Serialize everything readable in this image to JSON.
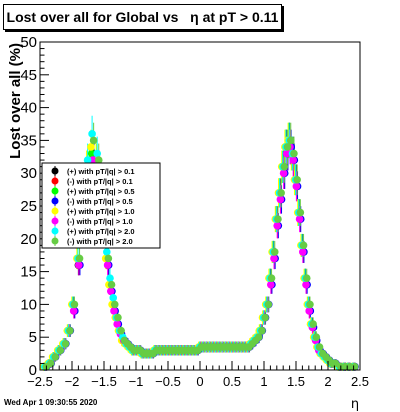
{
  "title": "Lost over all for Global vs   η at pT > 0.11",
  "timestamp": "Wed Apr  1 09:30:55 2020",
  "chart_data": {
    "type": "scatter",
    "xlabel": "η",
    "ylabel": "Lost over all (%)",
    "xlim": [
      -2.5,
      2.5
    ],
    "ylim": [
      0,
      50
    ],
    "x_ticks": [
      "−2.5",
      "−2",
      "−1.5",
      "−1",
      "−0.5",
      "0",
      "0.5",
      "1",
      "1.5",
      "2",
      "2.5"
    ],
    "y_ticks": [
      "0",
      "5",
      "10",
      "15",
      "20",
      "25",
      "30",
      "35",
      "40",
      "45",
      "50"
    ],
    "grid": false,
    "legend_position": "left-middle",
    "eta": [
      -2.42,
      -2.35,
      -2.28,
      -2.2,
      -2.12,
      -2.05,
      -1.98,
      -1.9,
      -1.82,
      -1.75,
      -1.68,
      -1.6,
      -1.55,
      -1.5,
      -1.45,
      -1.4,
      -1.35,
      -1.3,
      -1.25,
      -1.2,
      -1.15,
      -1.1,
      -1.05,
      -1.0,
      -0.95,
      -0.9,
      -0.85,
      -0.8,
      -0.75,
      -0.7,
      -0.65,
      -0.6,
      -0.55,
      -0.5,
      -0.45,
      -0.4,
      -0.35,
      -0.3,
      -0.25,
      -0.2,
      -0.15,
      -0.1,
      -0.05,
      0.0,
      0.05,
      0.1,
      0.15,
      0.2,
      0.25,
      0.3,
      0.35,
      0.4,
      0.45,
      0.5,
      0.55,
      0.6,
      0.65,
      0.7,
      0.75,
      0.8,
      0.85,
      0.9,
      0.95,
      1.0,
      1.05,
      1.1,
      1.15,
      1.2,
      1.25,
      1.3,
      1.35,
      1.4,
      1.45,
      1.5,
      1.55,
      1.6,
      1.65,
      1.7,
      1.75,
      1.8,
      1.85,
      1.9,
      1.95,
      2.0,
      2.05,
      2.1,
      2.18,
      2.25,
      2.32,
      2.4
    ],
    "series": [
      {
        "name": "(+) with pT/|q| > 0.1",
        "color": "#000000",
        "values": [
          0.5,
          1,
          2,
          3,
          4,
          6,
          10,
          16,
          24,
          30,
          33,
          31,
          27,
          22,
          17,
          13,
          10,
          8,
          6,
          4.5,
          4,
          3.5,
          3,
          3,
          3,
          2.5,
          2.5,
          2.5,
          2.5,
          3,
          3,
          3,
          3,
          3,
          3,
          3,
          3,
          3,
          3,
          3,
          3,
          3,
          3,
          3.5,
          3.5,
          3.5,
          3.5,
          3.5,
          3.5,
          3.5,
          3.5,
          3.5,
          3.5,
          3.5,
          3.5,
          3.5,
          3.5,
          3.5,
          3.5,
          4,
          4.5,
          5,
          6,
          8,
          10,
          14,
          18,
          23,
          27,
          31,
          34,
          35,
          33,
          29,
          24,
          19,
          14,
          10,
          7,
          5,
          3.5,
          2.5,
          2,
          1.5,
          1,
          1,
          0.5,
          0.5,
          0.5,
          0.5
        ]
      },
      {
        "name": "(-) with pT/|q| > 0.1",
        "color": "#ff0000",
        "values": [
          0.5,
          1,
          2,
          3,
          4,
          6,
          9,
          16,
          23,
          30,
          32,
          30,
          27,
          21,
          16,
          12,
          9,
          7,
          5.5,
          4.5,
          4,
          3.5,
          3,
          3,
          3,
          2.5,
          2.5,
          2.5,
          2.5,
          3,
          3,
          3,
          3,
          3,
          3,
          3,
          3,
          3,
          3,
          3,
          3,
          3,
          3,
          3.5,
          3.5,
          3.5,
          3.5,
          3.5,
          3.5,
          3.5,
          3.5,
          3.5,
          3.5,
          3.5,
          3.5,
          3.5,
          3.5,
          3.5,
          3.5,
          4,
          4.5,
          5,
          6,
          8,
          10,
          13,
          17,
          22,
          26,
          30,
          33,
          34,
          32,
          28,
          23,
          18,
          13,
          9,
          6.5,
          4.5,
          3,
          2.5,
          2,
          1.5,
          1,
          1,
          0.5,
          0.5,
          0.5,
          0.5
        ]
      },
      {
        "name": "(+) with pT/|q| > 0.5",
        "color": "#00ff00",
        "values": [
          0.5,
          1,
          2,
          3,
          4,
          6,
          10,
          17,
          25,
          31,
          33,
          32,
          28,
          22,
          17,
          13,
          10,
          8,
          6,
          4.5,
          4,
          3.5,
          3,
          3,
          3,
          2.5,
          2.5,
          2.5,
          2.5,
          3,
          3,
          3,
          3,
          3,
          3,
          3,
          3,
          3,
          3,
          3,
          3,
          3,
          3,
          3.5,
          3.5,
          3.5,
          3.5,
          3.5,
          3.5,
          3.5,
          3.5,
          3.5,
          3.5,
          3.5,
          3.5,
          3.5,
          3.5,
          3.5,
          3.5,
          4,
          4.5,
          5,
          6,
          8,
          10,
          14,
          18,
          23,
          27,
          31,
          34,
          35,
          33,
          29,
          24,
          19,
          14,
          10,
          7,
          5,
          3.5,
          2.5,
          2,
          1.5,
          1,
          1,
          0.5,
          0.5,
          0.5,
          0.5
        ]
      },
      {
        "name": "(-) with pT/|q| > 0.5",
        "color": "#0000ff",
        "values": [
          0.5,
          1,
          2,
          3,
          4,
          6,
          9,
          16,
          24,
          30,
          32,
          31,
          27,
          21,
          16,
          12,
          9,
          7,
          5.5,
          4.5,
          4,
          3.5,
          3,
          3,
          3,
          2.5,
          2.5,
          2.5,
          2.5,
          3,
          3,
          3,
          3,
          3,
          3,
          3,
          3,
          3,
          3,
          3,
          3,
          3,
          3,
          3.5,
          3.5,
          3.5,
          3.5,
          3.5,
          3.5,
          3.5,
          3.5,
          3.5,
          3.5,
          3.5,
          3.5,
          3.5,
          3.5,
          3.5,
          3.5,
          4,
          4.5,
          5,
          6,
          8,
          10,
          13,
          17,
          22,
          26,
          30,
          33,
          34,
          32,
          28,
          23,
          18,
          13,
          9,
          6.5,
          4.5,
          3,
          2.5,
          2,
          1.5,
          1,
          1,
          0.5,
          0.5,
          0.5,
          0.5
        ]
      },
      {
        "name": "(+) with pT/|q| > 1.0",
        "color": "#ffff00",
        "values": [
          0.5,
          1,
          2,
          3,
          4,
          6,
          10,
          17,
          25,
          31,
          34,
          32,
          28,
          22,
          17,
          13,
          10,
          8,
          6,
          4.5,
          4,
          3.5,
          3,
          3,
          3,
          2.5,
          2.5,
          2.5,
          2.5,
          3,
          3,
          3,
          3,
          3,
          3,
          3,
          3,
          3,
          3,
          3,
          3,
          3,
          3,
          3.5,
          3.5,
          3.5,
          3.5,
          3.5,
          3.5,
          3.5,
          3.5,
          3.5,
          3.5,
          3.5,
          3.5,
          3.5,
          3.5,
          3.5,
          3.5,
          4,
          4.5,
          5,
          6,
          8,
          10,
          14,
          18,
          23,
          27,
          31,
          34,
          35,
          33,
          29,
          24,
          19,
          14,
          10,
          7,
          5,
          3.5,
          2.5,
          2,
          1.5,
          1,
          1,
          0.5,
          0.5,
          0.5,
          0.5
        ]
      },
      {
        "name": "(-) with pT/|q| > 1.0",
        "color": "#ff00ff",
        "values": [
          0.5,
          1,
          2,
          3,
          4,
          6,
          9,
          16,
          24,
          30,
          32,
          31,
          27,
          21,
          16,
          12,
          9,
          7,
          5.5,
          4.5,
          4,
          3.5,
          3,
          3,
          3,
          2.5,
          2.5,
          2.5,
          2.5,
          3,
          3,
          3,
          3,
          3,
          3,
          3,
          3,
          3,
          3,
          3,
          3,
          3,
          3,
          3.5,
          3.5,
          3.5,
          3.5,
          3.5,
          3.5,
          3.5,
          3.5,
          3.5,
          3.5,
          3.5,
          3.5,
          3.5,
          3.5,
          3.5,
          3.5,
          4,
          4.5,
          5,
          6,
          8,
          10,
          13,
          17,
          22,
          26,
          30,
          33,
          34,
          32,
          28,
          23,
          18,
          13,
          9,
          6.5,
          4.5,
          3,
          2.5,
          2,
          1.5,
          1,
          1,
          0.5,
          0.5,
          0.5,
          0.5
        ]
      },
      {
        "name": "(+) with pT/|q| > 2.0",
        "color": "#00ffff",
        "values": [
          0.5,
          1,
          2,
          3,
          4,
          6,
          10,
          17,
          25,
          32,
          36,
          33,
          29,
          23,
          18,
          14,
          11,
          8,
          6,
          5,
          4,
          3.5,
          3,
          3,
          3,
          2.5,
          2.5,
          2.5,
          2.5,
          3,
          3,
          3,
          3,
          3,
          3,
          3,
          3,
          3,
          3,
          3,
          3,
          3,
          3,
          3.5,
          3.5,
          3.5,
          3.5,
          3.5,
          3.5,
          3.5,
          3.5,
          3.5,
          3.5,
          3.5,
          3.5,
          3.5,
          3.5,
          3.5,
          3.5,
          4,
          4.5,
          5,
          6,
          8,
          10,
          14,
          18,
          23,
          27,
          31,
          34,
          35,
          33,
          29,
          24,
          19,
          14,
          10,
          7,
          5,
          3.5,
          2.5,
          2,
          1.5,
          1,
          1,
          0.5,
          0.5,
          0.5,
          0.5
        ]
      },
      {
        "name": "(-) with pT/|q| > 2.0",
        "color": "#66cc44",
        "values": [
          0.5,
          1,
          2,
          3,
          4,
          6,
          10,
          17,
          25,
          31,
          35,
          32,
          28,
          22,
          17,
          13,
          10,
          8,
          6,
          4.5,
          4,
          3.5,
          3,
          3,
          3,
          2.5,
          2.5,
          2.5,
          2.5,
          3,
          3,
          3,
          3,
          3,
          3,
          3,
          3,
          3,
          3,
          3,
          3,
          3,
          3,
          3.5,
          3.5,
          3.5,
          3.5,
          3.5,
          3.5,
          3.5,
          3.5,
          3.5,
          3.5,
          3.5,
          3.5,
          3.5,
          3.5,
          3.5,
          3.5,
          4,
          4.5,
          5,
          6,
          8,
          10,
          14,
          18,
          23,
          27,
          31,
          34,
          35,
          33,
          29,
          24,
          19,
          14,
          10,
          7,
          5,
          3.5,
          2.5,
          2,
          1.5,
          1,
          1,
          0.5,
          0.5,
          0.5,
          0.5
        ]
      }
    ]
  }
}
